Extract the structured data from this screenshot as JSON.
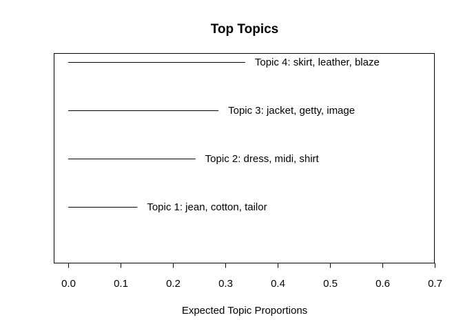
{
  "chart_data": {
    "type": "bar",
    "orientation": "horizontal",
    "title": "Top Topics",
    "xlabel": "Expected Topic Proportions",
    "ylabel": "",
    "xlim": [
      0,
      0.7
    ],
    "xticks": [
      0.0,
      0.1,
      0.2,
      0.3,
      0.4,
      0.5,
      0.6,
      0.7
    ],
    "xtick_labels": [
      "0.0",
      "0.1",
      "0.2",
      "0.3",
      "0.4",
      "0.5",
      "0.6",
      "0.7"
    ],
    "grid": false,
    "categories": [
      "Topic 1: jean, cotton, tailor",
      "Topic 2: dress, midi, shirt",
      "Topic 3: jacket, getty, image",
      "Topic 4: skirt, leather, blaze"
    ],
    "values": [
      0.132,
      0.243,
      0.287,
      0.338
    ]
  }
}
